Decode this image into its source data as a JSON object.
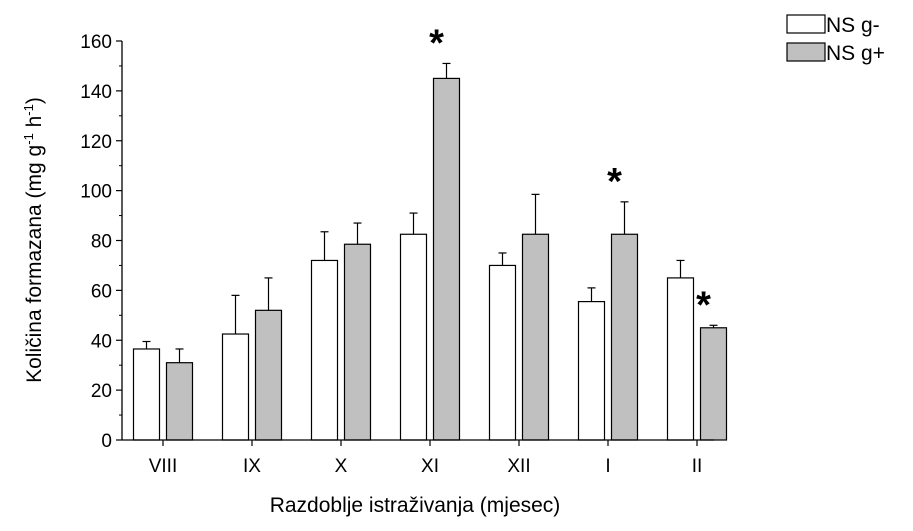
{
  "chart_data": {
    "type": "bar",
    "categories": [
      "VIII",
      "IX",
      "X",
      "XI",
      "XII",
      "I",
      "II"
    ],
    "series": [
      {
        "name": "NS g-",
        "color": "#ffffff",
        "values": [
          36.5,
          42.5,
          72,
          82.5,
          70,
          55.5,
          65
        ],
        "errors": [
          3,
          15.5,
          11.5,
          8.5,
          5,
          5.5,
          7
        ]
      },
      {
        "name": "NS g+",
        "color": "#c0c0c0",
        "values": [
          31,
          52,
          78.5,
          145,
          82.5,
          82.5,
          45
        ],
        "errors": [
          5.5,
          13,
          8.5,
          6,
          16,
          13,
          1
        ]
      }
    ],
    "significance_marks": [
      {
        "category": "XI",
        "series": "NS g+",
        "mark": "*"
      },
      {
        "category": "I",
        "series": "NS g+",
        "mark": "*"
      },
      {
        "category": "II",
        "series": "NS g+",
        "mark": "*"
      }
    ],
    "ylabel_main": "Količina formazana (mg g",
    "ylabel_sup1": "-1",
    "ylabel_mid": " h",
    "ylabel_sup2": "-1",
    "ylabel_end": ")",
    "xlabel": "Razdoblje istraživanja (mjesec)",
    "ylim": [
      0,
      160
    ],
    "yticks": [
      "0",
      "20",
      "40",
      "60",
      "80",
      "100",
      "120",
      "140",
      "160"
    ],
    "grid": false,
    "legend_position": "top-right"
  }
}
